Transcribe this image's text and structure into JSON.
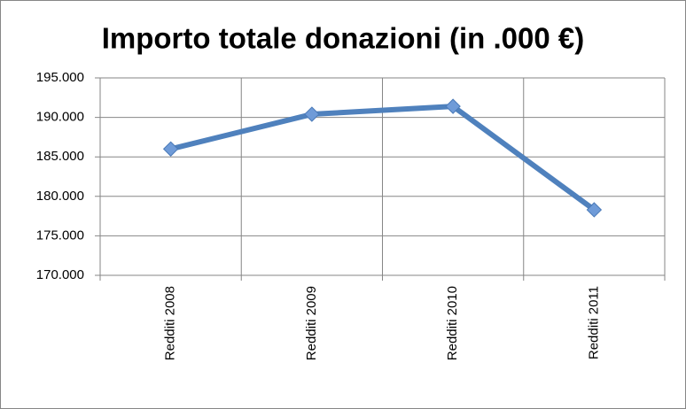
{
  "chart_data": {
    "type": "line",
    "title": "Importo totale donazioni (in .000 €)",
    "categories": [
      "Redditi 2008",
      "Redditi 2009",
      "Redditi 2010",
      "Redditi 2011"
    ],
    "values": [
      186000,
      190400,
      191400,
      178300
    ],
    "color": "#4f81bd",
    "ylim": [
      170000,
      195000
    ],
    "yticks": [
      {
        "value": 170000,
        "label": "170.000"
      },
      {
        "value": 175000,
        "label": "175.000"
      },
      {
        "value": 180000,
        "label": "180.000"
      },
      {
        "value": 185000,
        "label": "185.000"
      },
      {
        "value": 190000,
        "label": "190.000"
      },
      {
        "value": 195000,
        "label": "195.000"
      }
    ],
    "grid": true
  }
}
